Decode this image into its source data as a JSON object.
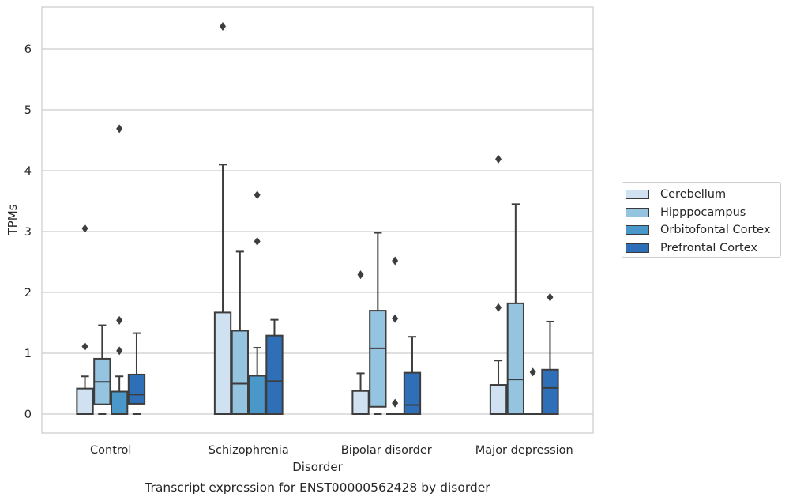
{
  "chart_data": {
    "type": "box",
    "title": "Transcript expression for ENST00000562428 by disorder",
    "xlabel": "Disorder",
    "ylabel": "TPMs",
    "ylim": [
      -0.3,
      6.7
    ],
    "yticks": [
      0,
      1,
      2,
      3,
      4,
      5,
      6
    ],
    "grid": true,
    "legend_position": "right",
    "categories": [
      "Control",
      "Schizophrenia",
      "Bipolar disorder",
      "Major depression"
    ],
    "series": [
      {
        "name": "Cerebellum",
        "color": "#d0e1f2",
        "boxes": [
          {
            "whislo": 0,
            "q1": 0,
            "med": 0,
            "q3": 0.42,
            "whishi": 0.62,
            "fliers": [
              1.11,
              3.05
            ]
          },
          {
            "whislo": 0,
            "q1": 0,
            "med": 0,
            "q3": 1.67,
            "whishi": 4.1,
            "fliers": [
              6.37
            ]
          },
          {
            "whislo": 0,
            "q1": 0,
            "med": 0,
            "q3": 0.38,
            "whishi": 0.67,
            "fliers": [
              2.29
            ]
          },
          {
            "whislo": 0,
            "q1": 0,
            "med": 0,
            "q3": 0.48,
            "whishi": 0.88,
            "fliers": [
              1.75,
              4.19
            ]
          }
        ]
      },
      {
        "name": "Hipppocampus",
        "color": "#94c4df",
        "boxes": [
          {
            "whislo": 0,
            "q1": 0.16,
            "med": 0.53,
            "q3": 0.91,
            "whishi": 1.46,
            "fliers": []
          },
          {
            "whislo": 0,
            "q1": 0,
            "med": 0.5,
            "q3": 1.37,
            "whishi": 2.67,
            "fliers": []
          },
          {
            "whislo": 0,
            "q1": 0.12,
            "med": 1.08,
            "q3": 1.7,
            "whishi": 2.98,
            "fliers": []
          },
          {
            "whislo": 0,
            "q1": 0,
            "med": 0.57,
            "q3": 1.82,
            "whishi": 3.45,
            "fliers": []
          }
        ]
      },
      {
        "name": "Orbitofontal Cortex",
        "color": "#4a98c9",
        "boxes": [
          {
            "whislo": 0,
            "q1": 0,
            "med": 0,
            "q3": 0.37,
            "whishi": 0.62,
            "fliers": [
              1.04,
              1.54,
              4.69
            ]
          },
          {
            "whislo": 0,
            "q1": 0,
            "med": 0,
            "q3": 0.63,
            "whishi": 1.09,
            "fliers": [
              2.84,
              3.6
            ]
          },
          {
            "whislo": 0,
            "q1": 0,
            "med": 0,
            "q3": 0,
            "whishi": 0,
            "fliers": [
              0.18,
              1.57,
              2.52
            ]
          },
          {
            "whislo": 0,
            "q1": 0,
            "med": 0,
            "q3": 0,
            "whishi": 0,
            "fliers": [
              0.69
            ]
          }
        ]
      },
      {
        "name": "Prefrontal Cortex",
        "color": "#2e6fb7",
        "boxes": [
          {
            "whislo": 0,
            "q1": 0.17,
            "med": 0.32,
            "q3": 0.65,
            "whishi": 1.33,
            "fliers": []
          },
          {
            "whislo": 0,
            "q1": 0,
            "med": 0.54,
            "q3": 1.29,
            "whishi": 1.55,
            "fliers": []
          },
          {
            "whislo": 0,
            "q1": 0,
            "med": 0.15,
            "q3": 0.68,
            "whishi": 1.27,
            "fliers": []
          },
          {
            "whislo": 0,
            "q1": 0,
            "med": 0.43,
            "q3": 0.73,
            "whishi": 1.52,
            "fliers": [
              1.92
            ]
          }
        ]
      }
    ]
  }
}
